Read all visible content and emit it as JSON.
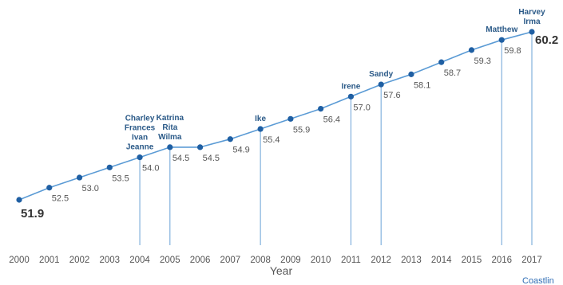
{
  "chart_data": {
    "type": "line",
    "title": "",
    "xlabel": "Year",
    "ylabel": "",
    "categories": [
      "2000",
      "2001",
      "2002",
      "2003",
      "2004",
      "2005",
      "2006",
      "2007",
      "2008",
      "2009",
      "2010",
      "2011",
      "2012",
      "2013",
      "2014",
      "2015",
      "2016",
      "2017"
    ],
    "values": [
      51.9,
      52.5,
      53.0,
      53.5,
      54.0,
      54.5,
      54.5,
      54.9,
      55.4,
      55.9,
      56.4,
      57.0,
      57.6,
      58.1,
      58.7,
      59.3,
      59.8,
      60.2
    ],
    "value_labels": [
      "51.9",
      "52.5",
      "53.0",
      "53.5",
      "54.0",
      "54.5",
      "54.5",
      "54.9",
      "55.4",
      "55.9",
      "56.4",
      "57.0",
      "57.6",
      "58.1",
      "58.7",
      "59.3",
      "59.8",
      "60.2"
    ],
    "ylim": [
      51.0,
      60.6
    ],
    "grid": false,
    "legend": "none",
    "colors": {
      "line": "#5b9bd5",
      "point": "#1f5fa3",
      "annotation_text": "#2b5a88",
      "drop_line": "#6aa2d6"
    },
    "annotations": [
      {
        "year": "2004",
        "lines": [
          "Charley",
          "Frances",
          "Ivan",
          "Jeanne"
        ]
      },
      {
        "year": "2005",
        "lines": [
          "Katrina",
          "Rita",
          "Wilma"
        ]
      },
      {
        "year": "2008",
        "lines": [
          "Ike"
        ]
      },
      {
        "year": "2011",
        "lines": [
          "Irene"
        ]
      },
      {
        "year": "2012",
        "lines": [
          "Sandy"
        ]
      },
      {
        "year": "2016",
        "lines": [
          "Matthew"
        ]
      },
      {
        "year": "2017",
        "lines": [
          "Harvey",
          "Irma"
        ]
      }
    ]
  },
  "corner_text": "Coastlin"
}
